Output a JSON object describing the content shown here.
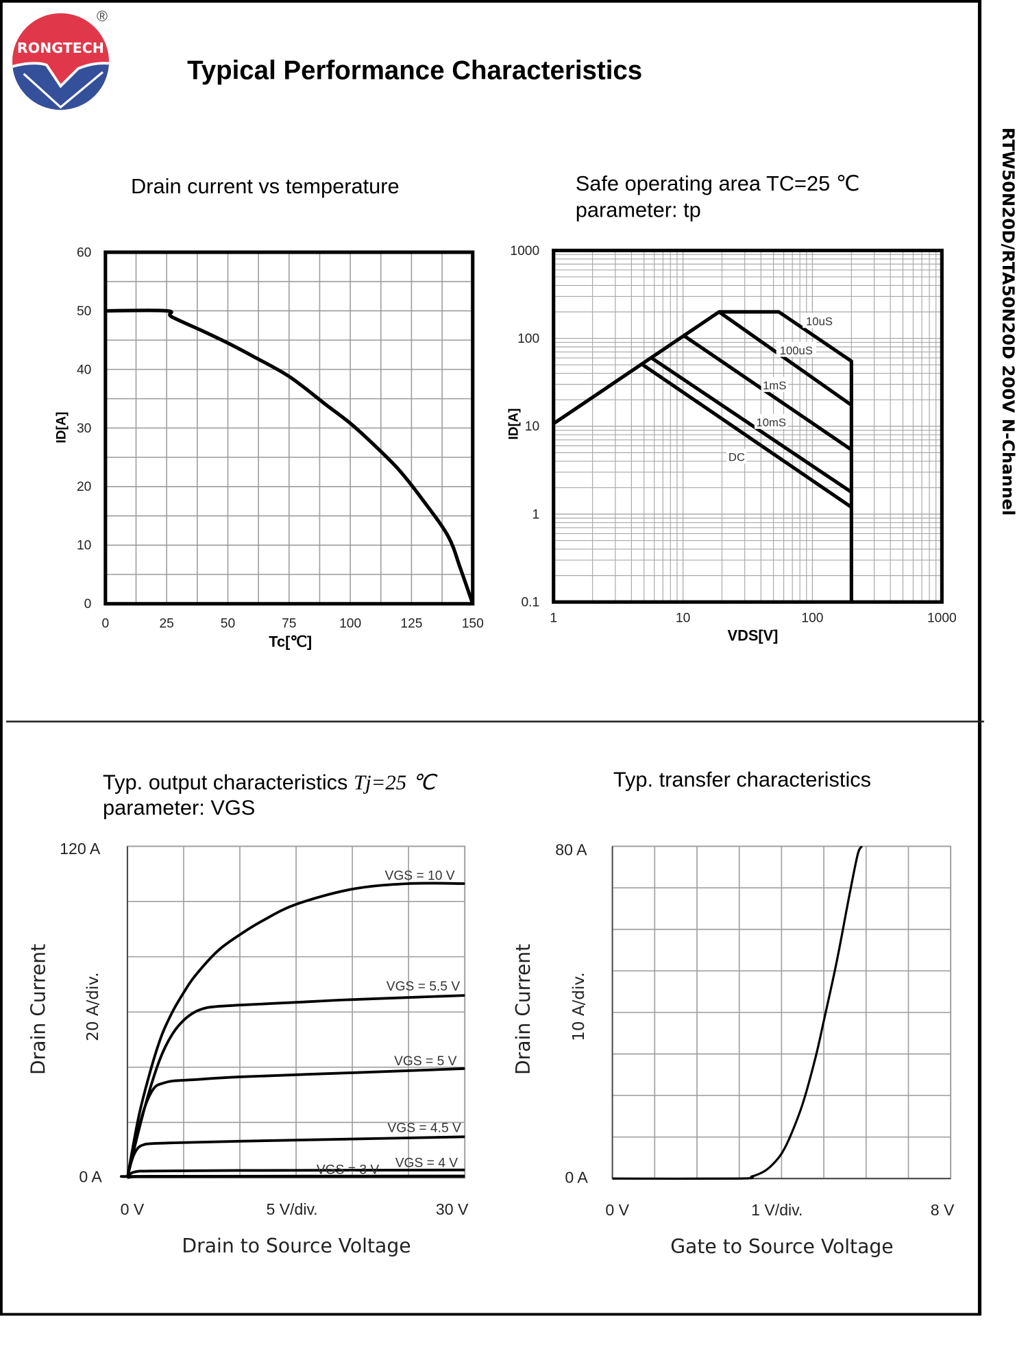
{
  "header": {
    "logo_text": "RONGTECH",
    "registered_mark": "®",
    "title": "Typical Performance Characteristics",
    "side_text": "RTW50N20D/RTA50N20D 200V N-Channel"
  },
  "colors": {
    "logo_red": "#e0384a",
    "logo_blue": "#34509a",
    "grid": "#9a9a9a",
    "curve": "#000000"
  },
  "chart_data": [
    {
      "type": "line",
      "title": "Drain current vs temperature",
      "xlabel": "Tc[℃]",
      "ylabel": "ID[A]",
      "xlim": [
        0,
        150
      ],
      "ylim": [
        0,
        60
      ],
      "xticks": [
        0,
        25,
        50,
        75,
        100,
        125,
        150
      ],
      "yticks": [
        0,
        10,
        20,
        30,
        40,
        50,
        60
      ],
      "grid": true,
      "series": [
        {
          "name": "ID",
          "x": [
            0,
            25,
            27,
            40,
            50,
            60,
            75,
            90,
            100,
            110,
            120,
            130,
            140,
            145,
            150
          ],
          "y": [
            50,
            50,
            49,
            46.5,
            44.5,
            42.3,
            38.8,
            34,
            30.8,
            27,
            22.8,
            17.5,
            11.5,
            6,
            0
          ]
        }
      ]
    },
    {
      "type": "line",
      "title": "Safe operating area TC=25 ℃",
      "subtitle": "parameter: tp",
      "xlabel": "VDS[V]",
      "ylabel": "ID[A]",
      "xscale": "log",
      "yscale": "log",
      "xlim": [
        1,
        1000
      ],
      "ylim": [
        0.1,
        1000
      ],
      "xticks": [
        "1",
        "10",
        "100",
        "1000"
      ],
      "yticks": [
        "0.1",
        "1",
        "10",
        "100",
        "1000"
      ],
      "grid": true,
      "series": [
        {
          "name": "10uS",
          "x": [
            1,
            19,
            55,
            200,
            200
          ],
          "y": [
            10.7,
            200,
            200,
            55,
            0.1
          ],
          "label_at": [
            113,
            158
          ]
        },
        {
          "name": "100uS",
          "x": [
            19,
            200
          ],
          "y": [
            200,
            17.4
          ],
          "label_at": [
            75,
            74
          ]
        },
        {
          "name": "1mS",
          "x": [
            10.2,
            200
          ],
          "y": [
            107,
            5.4
          ],
          "label_at": [
            51,
            29.5
          ]
        },
        {
          "name": "10mS",
          "x": [
            5.8,
            200
          ],
          "y": [
            59,
            1.78
          ],
          "label_at": [
            48,
            11.2
          ]
        },
        {
          "name": "DC",
          "x": [
            4.8,
            200
          ],
          "y": [
            51,
            1.2
          ],
          "label_at": [
            26,
            4.5
          ]
        }
      ]
    },
    {
      "type": "line",
      "title": "Typ. output characteristics",
      "title_param": "Tj=25 ℃",
      "subtitle": "parameter: VGS",
      "xlabel": "Drain to Source Voltage",
      "ylabel": "Drain Current",
      "yscale_label": "20  A/div.",
      "xlim": [
        0,
        30
      ],
      "ylim": [
        0,
        120
      ],
      "y_top_label": "120  A",
      "y_bottom_label": "0  A",
      "x_left_label": "0  V",
      "x_mid_label": "5  V/div.",
      "x_right_label": "30  V",
      "grid": true,
      "xdivs": 6,
      "ydivs": 6,
      "series": [
        {
          "name": "VGS = 10 V",
          "x": [
            0,
            1,
            2,
            3,
            4,
            5,
            6,
            8,
            10,
            12,
            15,
            20,
            25,
            30
          ],
          "y": [
            0,
            22,
            38,
            51,
            60,
            67,
            73,
            82,
            88,
            93,
            99,
            104.5,
            106.5,
            106.5
          ],
          "label_at": [
            26,
            109.5
          ]
        },
        {
          "name": "VGS = 5.5 V",
          "x": [
            0,
            1,
            2,
            3,
            4,
            5,
            6,
            7,
            8,
            10,
            15,
            20,
            30
          ],
          "y": [
            0,
            17,
            32,
            44,
            52,
            57,
            60,
            61.5,
            62,
            62.5,
            63.5,
            64.5,
            66
          ],
          "label_at": [
            26.3,
            69.4
          ]
        },
        {
          "name": "VGS = 5 V",
          "x": [
            0,
            0.5,
            1,
            1.5,
            2,
            2.5,
            3,
            4,
            6,
            10,
            20,
            30
          ],
          "y": [
            0,
            10,
            18,
            25,
            30,
            33,
            34,
            35,
            35.5,
            36.5,
            38,
            39.5
          ],
          "label_at": [
            26.5,
            42.3
          ]
        },
        {
          "name": "VGS = 4.5 V",
          "x": [
            0,
            0.3,
            0.6,
            1,
            1.5,
            2,
            4,
            10,
            20,
            30
          ],
          "y": [
            0,
            5,
            8.5,
            11,
            12,
            12.3,
            12.6,
            13.2,
            14,
            14.8
          ],
          "label_at": [
            26.4,
            18.1
          ]
        },
        {
          "name": "VGS = 4 V",
          "x": [
            0,
            0.3,
            0.6,
            1,
            2,
            10,
            30
          ],
          "y": [
            0,
            1.5,
            2,
            2.3,
            2.4,
            2.6,
            2.8
          ],
          "label_at": [
            26.6,
            5.4
          ]
        },
        {
          "name": "VGS = 3 V",
          "x": [
            0,
            0.5,
            2,
            30
          ],
          "y": [
            0,
            0.3,
            0.5,
            0.6
          ],
          "label_at": [
            19.6,
            2.9
          ]
        }
      ]
    },
    {
      "type": "line",
      "title": "Typ. transfer characteristics",
      "xlabel": "Gate to Source Voltage",
      "ylabel": "Drain Current",
      "yscale_label": "10  A/div.",
      "xlim": [
        0,
        8
      ],
      "ylim": [
        0,
        80
      ],
      "y_top_label": "80  A",
      "y_bottom_label": "0  A",
      "x_left_label": "0  V",
      "x_mid_label": "1  V/div.",
      "x_right_label": "8  V",
      "grid": true,
      "xdivs": 8,
      "ydivs": 8,
      "series": [
        {
          "name": "ID",
          "x": [
            0,
            3,
            3.3,
            3.6,
            3.8,
            4,
            4.2,
            4.5,
            4.8,
            5,
            5.3,
            5.6,
            5.8,
            5.9
          ],
          "y": [
            0,
            0,
            0.5,
            1.8,
            3.5,
            6,
            10,
            18,
            29,
            38,
            52,
            68,
            78,
            80
          ]
        }
      ]
    }
  ]
}
